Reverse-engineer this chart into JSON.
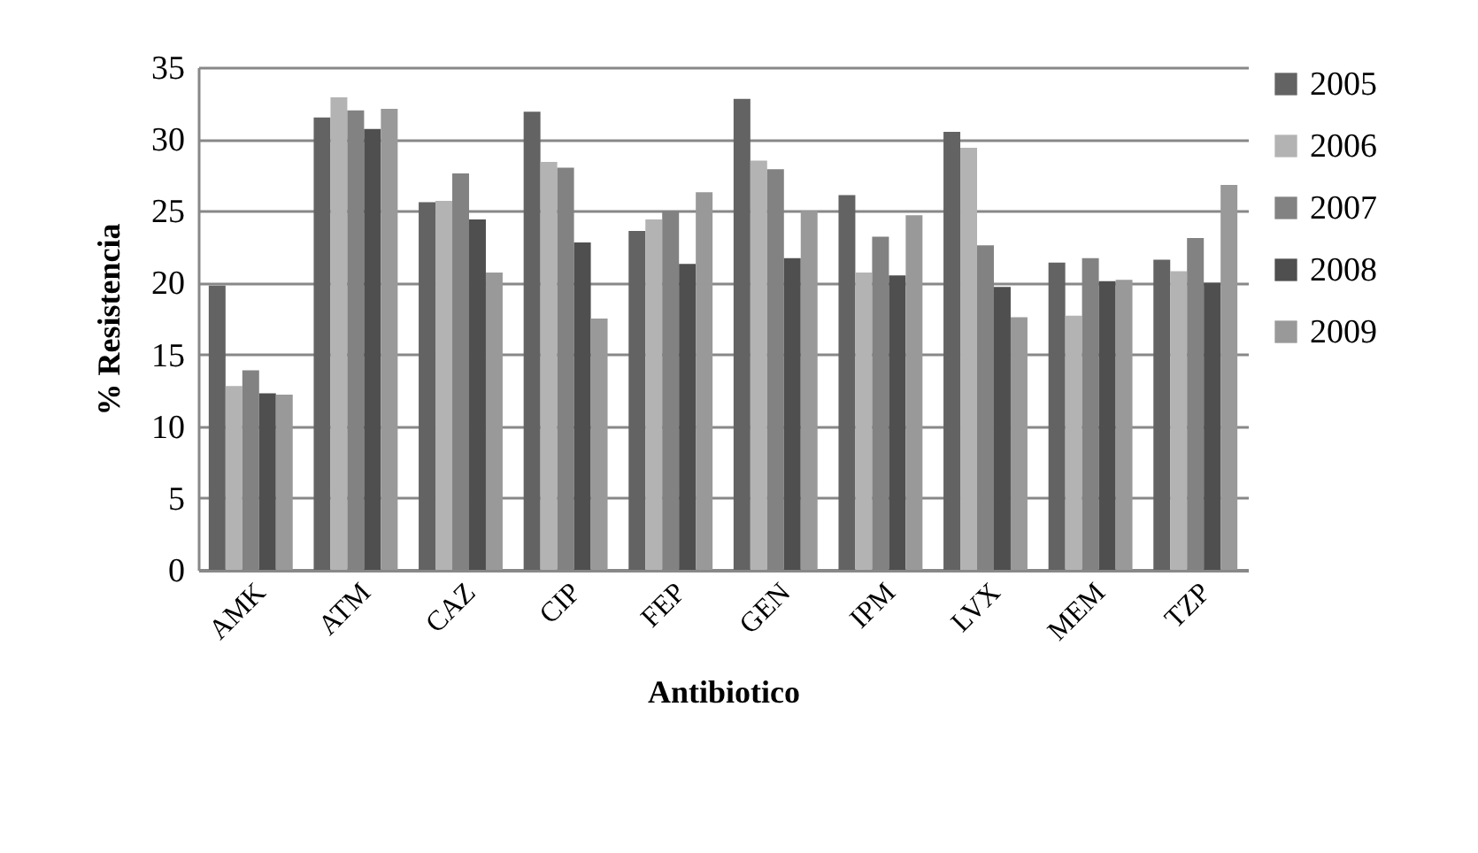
{
  "chart_data": {
    "type": "bar",
    "xlabel": "Antibiotico",
    "ylabel": "% Resistencia",
    "categories": [
      "AMK",
      "ATM",
      "CAZ",
      "CIP",
      "FEP",
      "GEN",
      "IPM",
      "LVX",
      "MEM",
      "TZP"
    ],
    "series": [
      {
        "name": "2005",
        "color": "#636363",
        "values": [
          19.8,
          31.5,
          25.6,
          31.9,
          23.6,
          32.8,
          26.1,
          30.5,
          21.4,
          21.6
        ]
      },
      {
        "name": "2006",
        "color": "#b3b3b3",
        "values": [
          12.8,
          32.9,
          25.7,
          28.4,
          24.4,
          28.5,
          20.7,
          29.4,
          17.7,
          20.8
        ]
      },
      {
        "name": "2007",
        "color": "#828282",
        "values": [
          13.9,
          32.0,
          27.6,
          28.0,
          25.0,
          27.9,
          23.2,
          22.6,
          21.7,
          23.1
        ]
      },
      {
        "name": "2008",
        "color": "#4f4f4f",
        "values": [
          12.3,
          30.7,
          24.4,
          22.8,
          21.3,
          21.7,
          20.5,
          19.7,
          20.1,
          20.0
        ]
      },
      {
        "name": "2009",
        "color": "#999999",
        "values": [
          12.2,
          32.1,
          20.7,
          17.5,
          26.3,
          25.0,
          24.7,
          17.6,
          20.2,
          26.8
        ]
      }
    ],
    "ylim": [
      0,
      35
    ],
    "yticks": [
      0,
      5,
      10,
      15,
      20,
      25,
      30,
      35
    ],
    "grid": "y",
    "legend": "right"
  }
}
